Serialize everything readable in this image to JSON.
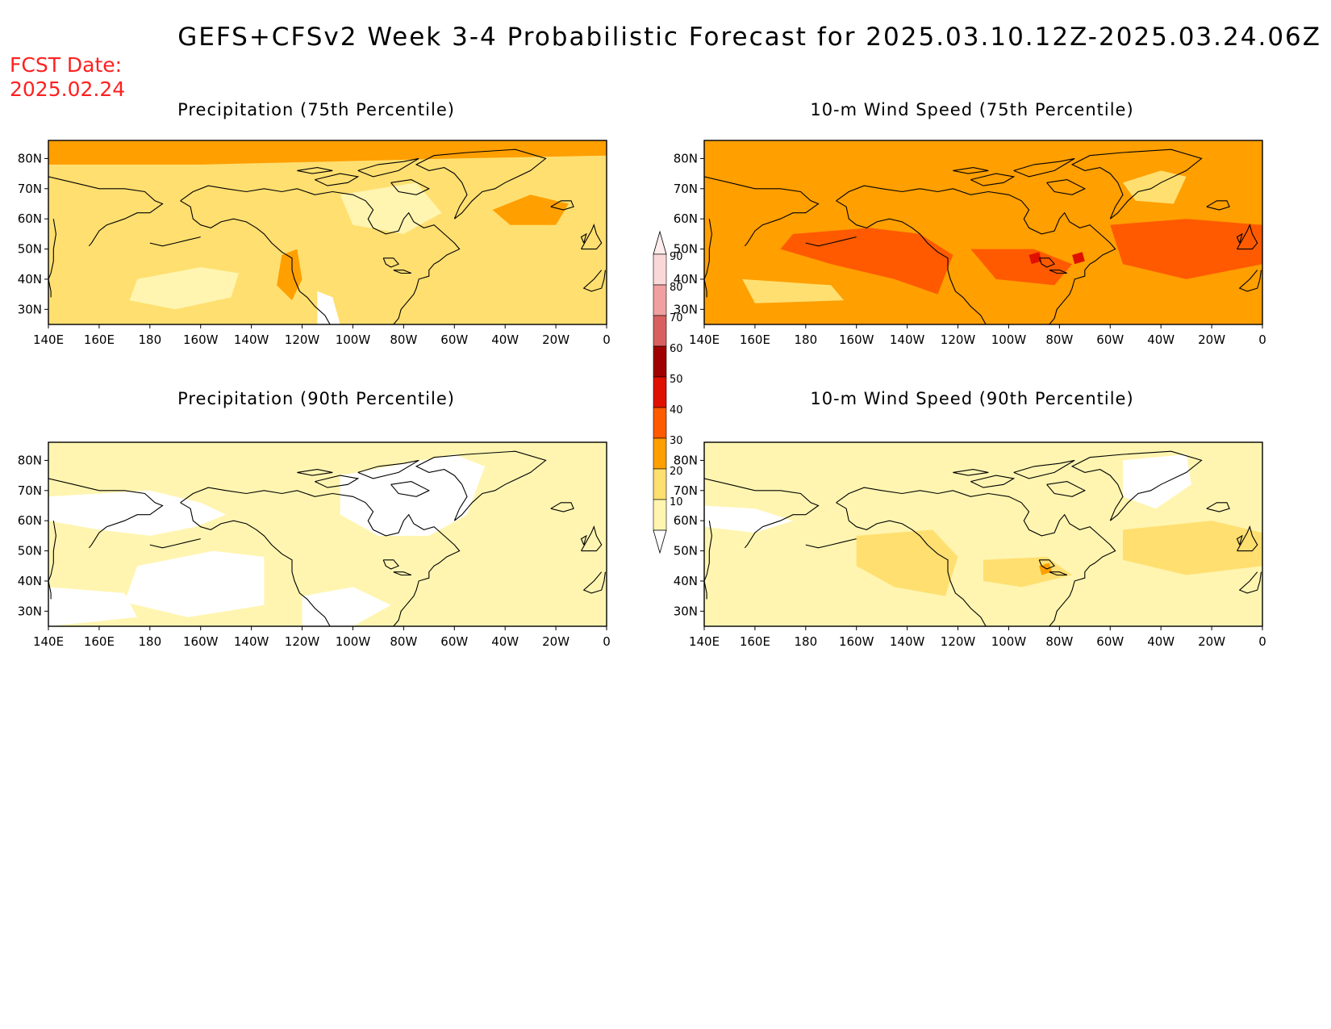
{
  "title": "GEFS+CFSv2 Week 3-4 Probabilistic Forecast for 2025.03.10.12Z-2025.03.24.06Z",
  "fcst_label": "FCST Date:",
  "fcst_date": "2025.02.24",
  "lon_labels": [
    "140E",
    "160E",
    "180",
    "160W",
    "140W",
    "120W",
    "100W",
    "80W",
    "60W",
    "40W",
    "20W",
    "0"
  ],
  "lat_labels": [
    "80N",
    "70N",
    "60N",
    "50N",
    "40N",
    "30N"
  ],
  "colorbar": {
    "levels": [
      "90",
      "80",
      "70",
      "60",
      "50",
      "40",
      "30",
      "20",
      "10"
    ],
    "colors": [
      "#fbd8d8",
      "#f0a0a0",
      "#d96060",
      "#a00000",
      "#e01000",
      "#ff5a00",
      "#ff9f00",
      "#ffdf70",
      "#fff5b0"
    ]
  },
  "panels": [
    {
      "id": "precip75",
      "title": "Precipitation (75th Percentile)",
      "dominant": "20-30 %",
      "background": "#ffdf70"
    },
    {
      "id": "wind75",
      "title": "10-m Wind Speed (75th Percentile)",
      "dominant": "30-50 %",
      "background": "#ff9f00"
    },
    {
      "id": "precip90",
      "title": "Precipitation (90th Percentile)",
      "dominant": "<20 %",
      "background": "#fff5b0"
    },
    {
      "id": "wind90",
      "title": "10-m Wind Speed (90th Percentile)",
      "dominant": "10-30 %",
      "background": "#fff5b0"
    }
  ]
}
